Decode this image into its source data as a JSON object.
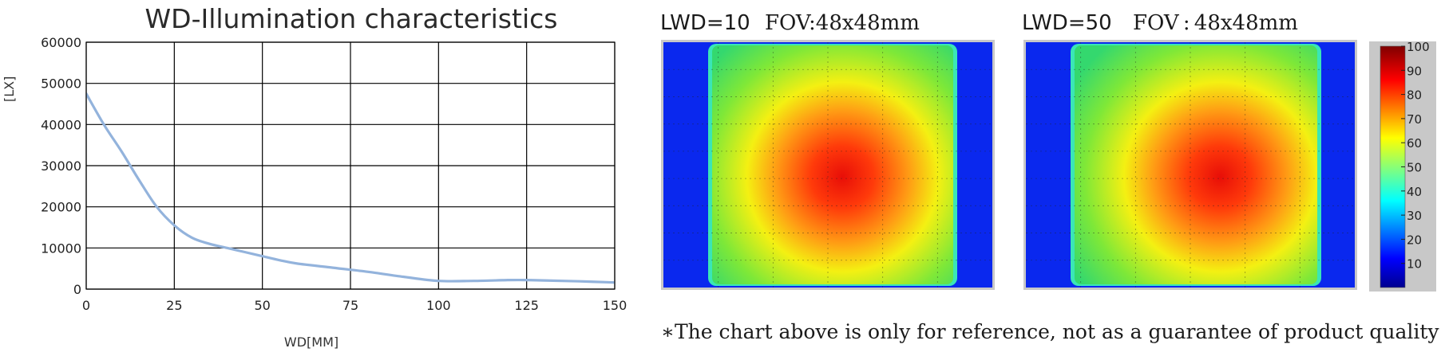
{
  "chart_data": [
    {
      "type": "line",
      "title": "WD-Illumination characteristics",
      "xlabel": "WD[MM]",
      "ylabel": "[LX]",
      "xlim": [
        0,
        150
      ],
      "ylim": [
        0,
        60000
      ],
      "x_ticks": [
        "0",
        "25",
        "50",
        "75",
        "100",
        "125",
        "150"
      ],
      "y_ticks": [
        "0",
        "10000",
        "20000",
        "30000",
        "40000",
        "50000",
        "60000"
      ],
      "grid": true,
      "series": [
        {
          "color": "#93b3dc",
          "x": [
            0,
            5,
            10,
            15,
            20,
            25,
            30,
            35,
            40,
            45,
            50,
            55,
            60,
            70,
            80,
            90,
            100,
            110,
            120,
            125,
            130,
            140,
            150
          ],
          "y": [
            47500,
            40000,
            33500,
            26500,
            20000,
            15500,
            12500,
            11000,
            10000,
            9000,
            8000,
            7000,
            6200,
            5200,
            4200,
            3000,
            2000,
            2000,
            2200,
            2200,
            2100,
            1900,
            1600
          ]
        }
      ]
    },
    {
      "type": "heatmap",
      "label_lwd": "LWD=10",
      "label_fov": "FOV:48x48mm",
      "peak_position": "center",
      "range": [
        0,
        100
      ]
    },
    {
      "type": "heatmap",
      "label_lwd": "LWD=50",
      "label_fov": "FOV : 48x48mm",
      "peak_position": "center-right",
      "range": [
        0,
        100
      ]
    }
  ],
  "colorbar": {
    "ticks": [
      "100",
      "90",
      "80",
      "70",
      "60",
      "50",
      "40",
      "30",
      "20",
      "10"
    ]
  },
  "note": "∗The chart above is only for reference, not as a guarantee of product quality"
}
